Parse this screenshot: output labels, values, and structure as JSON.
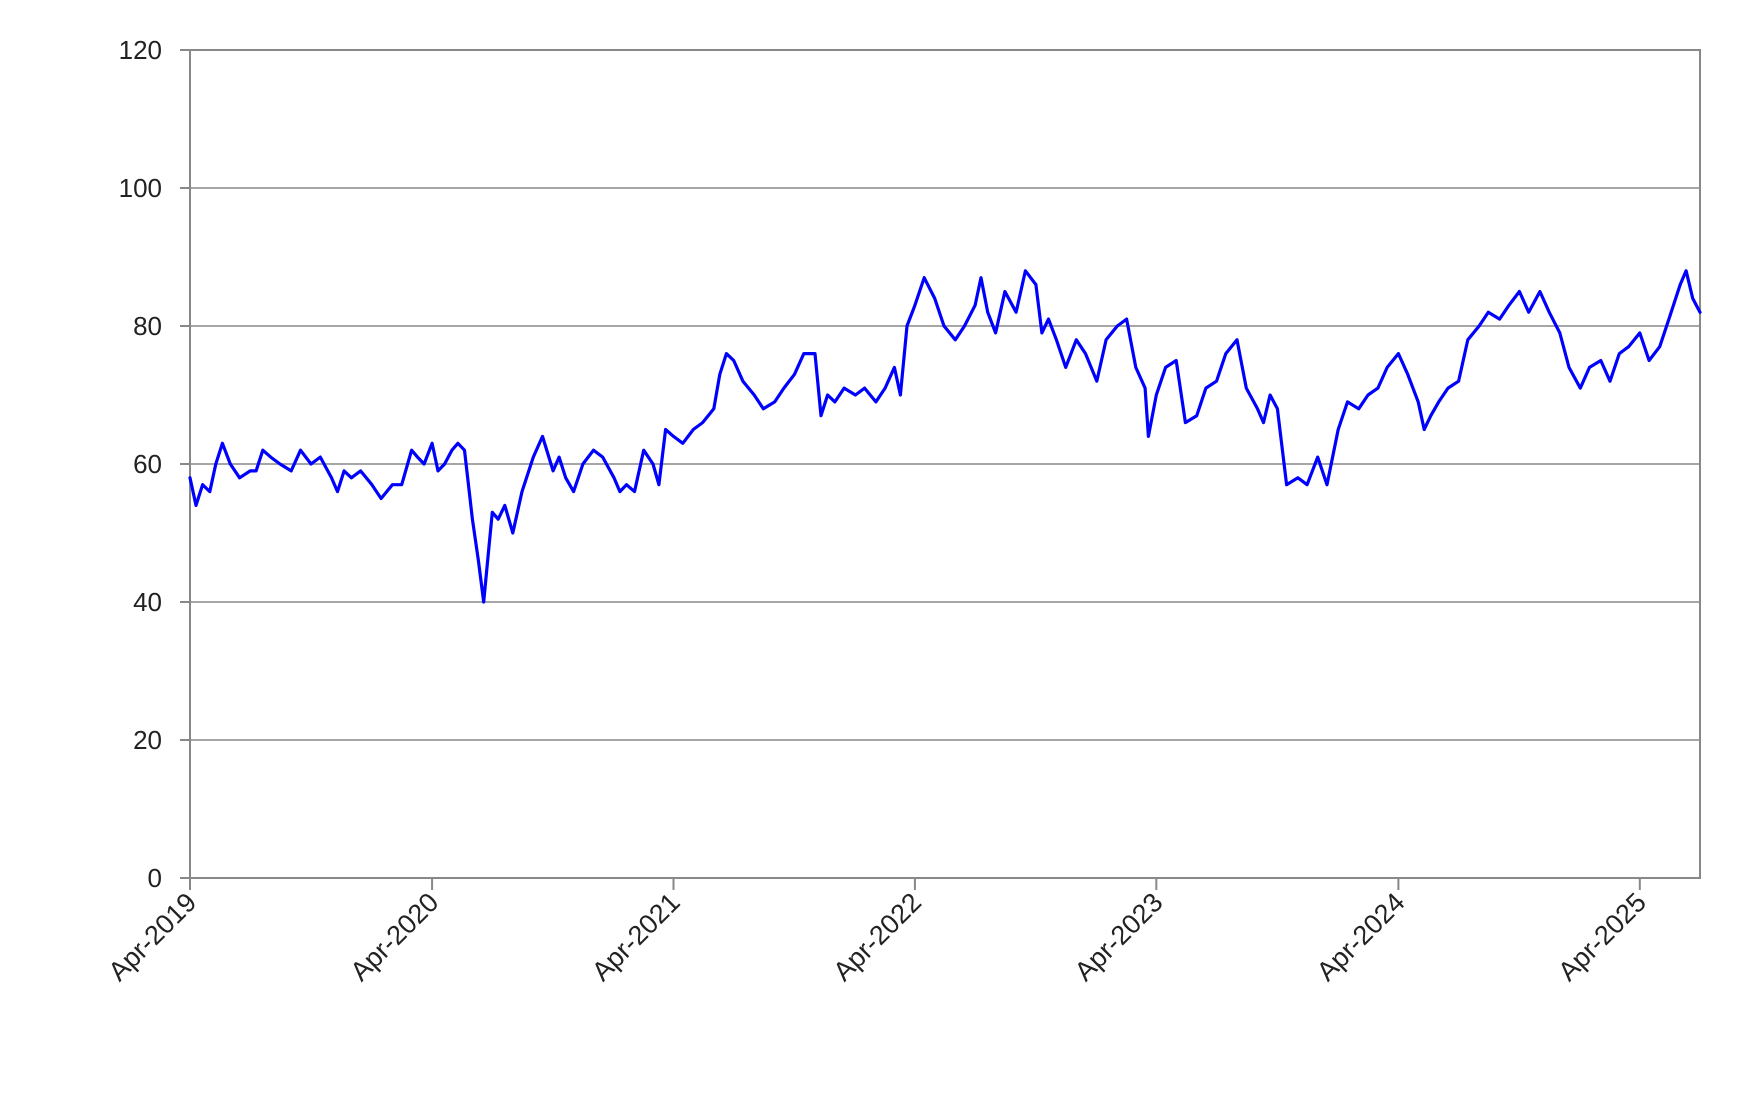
{
  "chart_data": {
    "type": "line",
    "title": "",
    "xlabel": "",
    "ylabel": "",
    "x_ticks": [
      "Apr-2019",
      "Apr-2020",
      "Apr-2021",
      "Apr-2022",
      "Apr-2023",
      "Apr-2024",
      "Apr-2025"
    ],
    "y_ticks": [
      "0",
      "20",
      "40",
      "60",
      "80",
      "100",
      "120"
    ],
    "xlim": [
      "2019-04",
      "2025-07"
    ],
    "ylim": [
      0,
      120
    ],
    "grid": "horizontal",
    "legend": "none",
    "series": [
      {
        "color": "#0000ff",
        "points": [
          [
            "2019-04-01",
            58
          ],
          [
            "2019-04-10",
            54
          ],
          [
            "2019-04-20",
            57
          ],
          [
            "2019-05-01",
            56
          ],
          [
            "2019-05-10",
            60
          ],
          [
            "2019-05-20",
            63
          ],
          [
            "2019-06-01",
            60
          ],
          [
            "2019-06-15",
            58
          ],
          [
            "2019-07-01",
            59
          ],
          [
            "2019-07-10",
            59
          ],
          [
            "2019-07-20",
            62
          ],
          [
            "2019-08-01",
            61
          ],
          [
            "2019-08-15",
            60
          ],
          [
            "2019-09-01",
            59
          ],
          [
            "2019-09-15",
            62
          ],
          [
            "2019-10-01",
            60
          ],
          [
            "2019-10-15",
            61
          ],
          [
            "2019-11-01",
            58
          ],
          [
            "2019-11-10",
            56
          ],
          [
            "2019-11-20",
            59
          ],
          [
            "2019-12-01",
            58
          ],
          [
            "2019-12-15",
            59
          ],
          [
            "2020-01-01",
            57
          ],
          [
            "2020-01-15",
            55
          ],
          [
            "2020-02-01",
            57
          ],
          [
            "2020-02-15",
            57
          ],
          [
            "2020-03-01",
            62
          ],
          [
            "2020-03-10",
            61
          ],
          [
            "2020-03-20",
            60
          ],
          [
            "2020-04-01",
            63
          ],
          [
            "2020-04-10",
            59
          ],
          [
            "2020-04-20",
            60
          ],
          [
            "2020-05-01",
            62
          ],
          [
            "2020-05-10",
            63
          ],
          [
            "2020-05-20",
            62
          ],
          [
            "2020-06-01",
            52
          ],
          [
            "2020-06-10",
            46
          ],
          [
            "2020-06-18",
            40
          ],
          [
            "2020-06-25",
            47
          ],
          [
            "2020-07-01",
            53
          ],
          [
            "2020-07-10",
            52
          ],
          [
            "2020-07-20",
            54
          ],
          [
            "2020-08-01",
            50
          ],
          [
            "2020-08-15",
            56
          ],
          [
            "2020-09-01",
            61
          ],
          [
            "2020-09-15",
            64
          ],
          [
            "2020-10-01",
            59
          ],
          [
            "2020-10-10",
            61
          ],
          [
            "2020-10-20",
            58
          ],
          [
            "2020-11-01",
            56
          ],
          [
            "2020-11-15",
            60
          ],
          [
            "2020-12-01",
            62
          ],
          [
            "2020-12-15",
            61
          ],
          [
            "2021-01-01",
            58
          ],
          [
            "2021-01-10",
            56
          ],
          [
            "2021-01-20",
            57
          ],
          [
            "2021-02-01",
            56
          ],
          [
            "2021-02-15",
            62
          ],
          [
            "2021-03-01",
            60
          ],
          [
            "2021-03-10",
            57
          ],
          [
            "2021-03-20",
            65
          ],
          [
            "2021-04-01",
            64
          ],
          [
            "2021-04-15",
            63
          ],
          [
            "2021-05-01",
            65
          ],
          [
            "2021-05-15",
            66
          ],
          [
            "2021-06-01",
            68
          ],
          [
            "2021-06-10",
            73
          ],
          [
            "2021-06-20",
            76
          ],
          [
            "2021-07-01",
            75
          ],
          [
            "2021-07-15",
            72
          ],
          [
            "2021-08-01",
            70
          ],
          [
            "2021-08-15",
            68
          ],
          [
            "2021-09-01",
            69
          ],
          [
            "2021-09-15",
            71
          ],
          [
            "2021-10-01",
            73
          ],
          [
            "2021-10-15",
            76
          ],
          [
            "2021-11-01",
            76
          ],
          [
            "2021-11-10",
            67
          ],
          [
            "2021-11-20",
            70
          ],
          [
            "2021-12-01",
            69
          ],
          [
            "2021-12-15",
            71
          ],
          [
            "2022-01-01",
            70
          ],
          [
            "2022-01-15",
            71
          ],
          [
            "2022-02-01",
            69
          ],
          [
            "2022-02-15",
            71
          ],
          [
            "2022-03-01",
            74
          ],
          [
            "2022-03-10",
            70
          ],
          [
            "2022-03-20",
            80
          ],
          [
            "2022-04-01",
            83
          ],
          [
            "2022-04-15",
            87
          ],
          [
            "2022-05-01",
            84
          ],
          [
            "2022-05-15",
            80
          ],
          [
            "2022-06-01",
            78
          ],
          [
            "2022-06-15",
            80
          ],
          [
            "2022-07-01",
            83
          ],
          [
            "2022-07-10",
            87
          ],
          [
            "2022-07-20",
            82
          ],
          [
            "2022-08-01",
            79
          ],
          [
            "2022-08-15",
            85
          ],
          [
            "2022-09-01",
            82
          ],
          [
            "2022-09-15",
            88
          ],
          [
            "2022-10-01",
            86
          ],
          [
            "2022-10-10",
            79
          ],
          [
            "2022-10-20",
            81
          ],
          [
            "2022-11-01",
            78
          ],
          [
            "2022-11-15",
            74
          ],
          [
            "2022-12-01",
            78
          ],
          [
            "2022-12-15",
            76
          ],
          [
            "2023-01-01",
            72
          ],
          [
            "2023-01-15",
            78
          ],
          [
            "2023-02-01",
            80
          ],
          [
            "2023-02-15",
            81
          ],
          [
            "2023-03-01",
            74
          ],
          [
            "2023-03-15",
            71
          ],
          [
            "2023-03-20",
            64
          ],
          [
            "2023-04-01",
            70
          ],
          [
            "2023-04-15",
            74
          ],
          [
            "2023-05-01",
            75
          ],
          [
            "2023-05-15",
            66
          ],
          [
            "2023-06-01",
            67
          ],
          [
            "2023-06-15",
            71
          ],
          [
            "2023-07-01",
            72
          ],
          [
            "2023-07-15",
            76
          ],
          [
            "2023-08-01",
            78
          ],
          [
            "2023-08-15",
            71
          ],
          [
            "2023-09-01",
            68
          ],
          [
            "2023-09-10",
            66
          ],
          [
            "2023-09-20",
            70
          ],
          [
            "2023-10-01",
            68
          ],
          [
            "2023-10-15",
            57
          ],
          [
            "2023-11-01",
            58
          ],
          [
            "2023-11-15",
            57
          ],
          [
            "2023-12-01",
            61
          ],
          [
            "2023-12-15",
            57
          ],
          [
            "2024-01-01",
            65
          ],
          [
            "2024-01-15",
            69
          ],
          [
            "2024-02-01",
            68
          ],
          [
            "2024-02-15",
            70
          ],
          [
            "2024-03-01",
            71
          ],
          [
            "2024-03-15",
            74
          ],
          [
            "2024-04-01",
            76
          ],
          [
            "2024-04-15",
            73
          ],
          [
            "2024-05-01",
            69
          ],
          [
            "2024-05-10",
            65
          ],
          [
            "2024-05-20",
            67
          ],
          [
            "2024-06-01",
            69
          ],
          [
            "2024-06-15",
            71
          ],
          [
            "2024-07-01",
            72
          ],
          [
            "2024-07-15",
            78
          ],
          [
            "2024-08-01",
            80
          ],
          [
            "2024-08-15",
            82
          ],
          [
            "2024-09-01",
            81
          ],
          [
            "2024-09-15",
            83
          ],
          [
            "2024-10-01",
            85
          ],
          [
            "2024-10-15",
            82
          ],
          [
            "2024-11-01",
            85
          ],
          [
            "2024-11-15",
            82
          ],
          [
            "2024-12-01",
            79
          ],
          [
            "2024-12-15",
            74
          ],
          [
            "2025-01-01",
            71
          ],
          [
            "2025-01-15",
            74
          ],
          [
            "2025-02-01",
            75
          ],
          [
            "2025-02-15",
            72
          ],
          [
            "2025-03-01",
            76
          ],
          [
            "2025-03-15",
            77
          ],
          [
            "2025-04-01",
            79
          ],
          [
            "2025-04-15",
            75
          ],
          [
            "2025-05-01",
            77
          ],
          [
            "2025-05-15",
            81
          ],
          [
            "2025-06-01",
            86
          ],
          [
            "2025-06-10",
            88
          ],
          [
            "2025-06-20",
            84
          ],
          [
            "2025-07-01",
            82
          ]
        ]
      }
    ]
  }
}
